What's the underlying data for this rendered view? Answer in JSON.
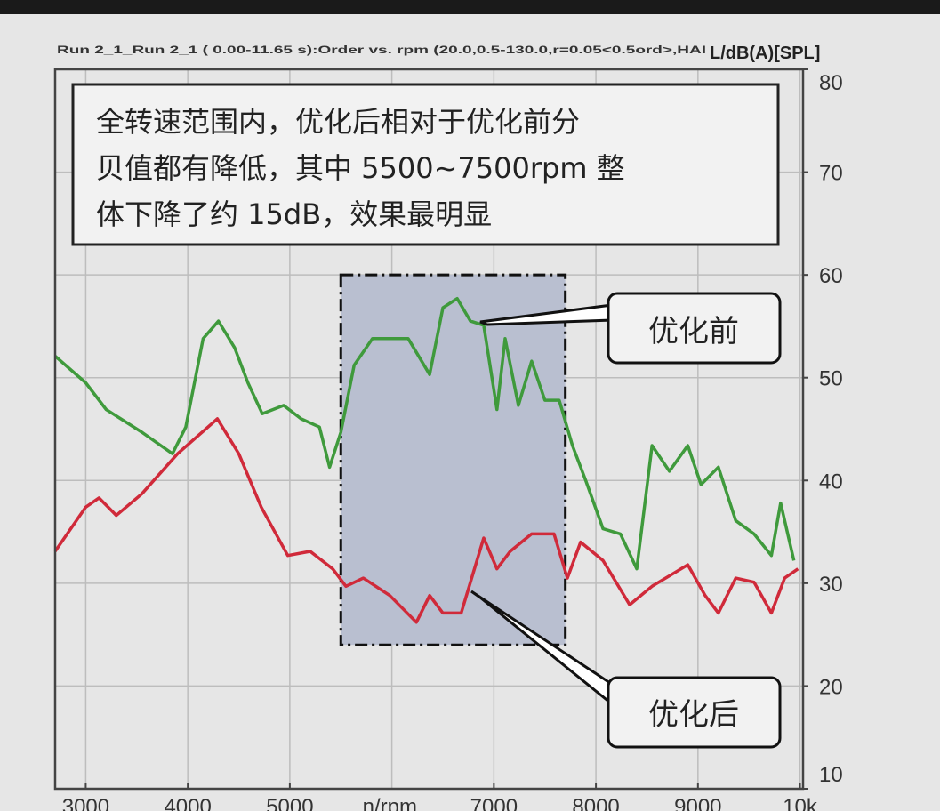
{
  "chart_data": {
    "type": "line",
    "title": "Run 2_1_Run 2_1 ( 0.00-11.65 s):Order vs. rpm (20.0,0.5-130.0,r=0.05<0.5ord>,HAI",
    "ylabel": "L/dB(A)[SPL]",
    "xlabel": "n/rpm",
    "xlim": [
      2700,
      10030
    ],
    "ylim": [
      10,
      80
    ],
    "x_ticks": [
      3000,
      4000,
      5000,
      7000,
      8000,
      9000,
      10000
    ],
    "x_tick_labels": [
      "3000",
      "4000",
      "5000",
      "7000",
      "8000",
      "9000",
      "10k"
    ],
    "x_gridlines": [
      3000,
      4000,
      5000,
      6000,
      7000,
      8000,
      9000,
      10000
    ],
    "y_ticks": [
      10,
      20,
      30,
      40,
      50,
      60,
      70,
      80
    ],
    "y_tick_labels": [
      "10",
      "20",
      "30",
      "40",
      "50",
      "60",
      "70",
      "80"
    ],
    "grid": true,
    "y_axis_side": "right",
    "series": [
      {
        "name": "优化前",
        "color": "#3f9a3c",
        "x": [
          2700,
          3000,
          3200,
          3550,
          3850,
          3980,
          4150,
          4300,
          4460,
          4590,
          4730,
          4940,
          5110,
          5290,
          5390,
          5500,
          5630,
          5810,
          6160,
          6370,
          6500,
          6640,
          6770,
          6900,
          7030,
          7110,
          7240,
          7370,
          7500,
          7640,
          7770,
          7900,
          8070,
          8240,
          8400,
          8550,
          8720,
          8900,
          9030,
          9200,
          9370,
          9550,
          9720,
          9810,
          9940
        ],
        "y": [
          52.1,
          49.5,
          46.9,
          44.7,
          42.6,
          45.2,
          53.8,
          55.5,
          52.9,
          49.5,
          46.5,
          47.3,
          46.0,
          45.2,
          41.3,
          44.7,
          51.2,
          53.8,
          53.8,
          50.3,
          56.8,
          57.7,
          55.5,
          55.1,
          46.9,
          53.8,
          47.3,
          51.6,
          47.8,
          47.8,
          43.4,
          40.0,
          35.3,
          34.8,
          31.4,
          43.4,
          40.9,
          43.4,
          39.6,
          41.3,
          36.1,
          34.8,
          32.7,
          37.8,
          32.2
        ]
      },
      {
        "name": "优化后",
        "color": "#d02a3a",
        "x": [
          2700,
          3000,
          3130,
          3300,
          3550,
          3900,
          4290,
          4500,
          4720,
          4980,
          5200,
          5420,
          5550,
          5720,
          5980,
          6240,
          6370,
          6500,
          6680,
          6900,
          7030,
          7160,
          7370,
          7590,
          7720,
          7850,
          8070,
          8330,
          8550,
          8900,
          9070,
          9200,
          9370,
          9550,
          9720,
          9850,
          9980
        ],
        "y": [
          33.1,
          37.4,
          38.3,
          36.6,
          38.7,
          42.6,
          46.0,
          42.6,
          37.4,
          32.7,
          33.1,
          31.4,
          29.7,
          30.5,
          28.8,
          26.2,
          28.8,
          27.1,
          27.1,
          34.4,
          31.4,
          33.1,
          34.8,
          34.8,
          30.5,
          34.0,
          32.2,
          27.9,
          29.7,
          31.8,
          28.8,
          27.1,
          30.5,
          30.1,
          27.1,
          30.5,
          31.4
        ]
      }
    ],
    "highlight_region": {
      "x": [
        5500,
        7700
      ],
      "y": [
        24,
        60
      ],
      "fill": "#b9bfd0"
    },
    "annotations": {
      "summary_lines": [
        "全转速范围内，优化后相对于优化前分",
        "贝值都有降低，其中 5500~7500rpm 整",
        "体下降了约 15dB，效果最明显"
      ],
      "before_label": "优化前",
      "after_label": "优化后"
    }
  }
}
